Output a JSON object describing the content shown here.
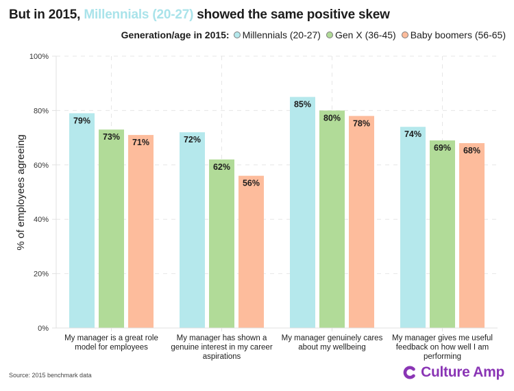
{
  "title": {
    "prefix": "But in 2015, ",
    "highlight": "Millennials (20-27)",
    "suffix": " showed the same positive skew"
  },
  "legend": {
    "title": "Generation/age in 2015:",
    "items": [
      {
        "label": "Millennials (20-27)",
        "color": "#b5e8ec"
      },
      {
        "label": "Gen X (36-45)",
        "color": "#b1db98"
      },
      {
        "label": "Baby boomers (56-65)",
        "color": "#fdbc9c"
      }
    ]
  },
  "footer": {
    "source": "Source: 2015 benchmark data",
    "logo_text": "Culture Amp",
    "logo_icon": "culture-amp-c-icon",
    "brand_color": "#8a35b5"
  },
  "chart_data": {
    "type": "bar",
    "title": "But in 2015, Millennials (20-27) showed the same positive skew",
    "xlabel": "",
    "ylabel": "% of employees agreeing",
    "ylim": [
      0,
      100
    ],
    "yticks": [
      0,
      20,
      40,
      60,
      80,
      100
    ],
    "ytick_labels": [
      "0%",
      "20%",
      "40%",
      "60%",
      "80%",
      "100%"
    ],
    "grid": true,
    "legend_position": "top-right",
    "categories": [
      [
        "My manager is a great role",
        "model for employees"
      ],
      [
        "My manager has shown a",
        "genuine interest in my career",
        "aspirations"
      ],
      [
        "My manager genuinely cares",
        "about my wellbeing"
      ],
      [
        "My manager gives me useful",
        "feedback on how well I am",
        "performing"
      ]
    ],
    "series": [
      {
        "name": "Millennials (20-27)",
        "color": "#b5e8ec",
        "values": [
          79,
          72,
          85,
          74
        ]
      },
      {
        "name": "Gen X (36-45)",
        "color": "#b1db98",
        "values": [
          73,
          62,
          80,
          69
        ]
      },
      {
        "name": "Baby boomers (56-65)",
        "color": "#fdbc9c",
        "values": [
          71,
          56,
          78,
          68
        ]
      }
    ],
    "data_label_suffix": "%"
  }
}
